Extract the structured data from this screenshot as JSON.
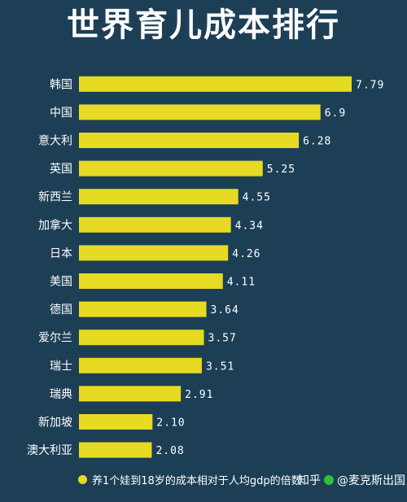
{
  "chart_data": {
    "type": "bar",
    "orientation": "horizontal",
    "title": "世界育儿成本排行",
    "categories": [
      "韩国",
      "中国",
      "意大利",
      "英国",
      "新西兰",
      "加拿大",
      "日本",
      "美国",
      "德国",
      "爱尔兰",
      "瑞士",
      "瑞典",
      "新加坡",
      "澳大利亚"
    ],
    "values": [
      7.79,
      6.9,
      6.28,
      5.25,
      4.55,
      4.34,
      4.26,
      4.11,
      3.64,
      3.57,
      3.51,
      2.91,
      2.1,
      2.08
    ],
    "value_labels": [
      "7.79",
      "6.9",
      "6.28",
      "5.25",
      "4.55",
      "4.34",
      "4.26",
      "4.11",
      "3.64",
      "3.57",
      "3.51",
      "2.91",
      "2.10",
      "2.08"
    ],
    "series_name": "养1个娃到18岁的成本相对于人均gdp的倍数",
    "bar_color": "#e7da23",
    "background_color": "#1c3f56",
    "legend_position": "bottom"
  },
  "watermark": {
    "brand": "知乎",
    "handle": "@麦克斯出国"
  }
}
